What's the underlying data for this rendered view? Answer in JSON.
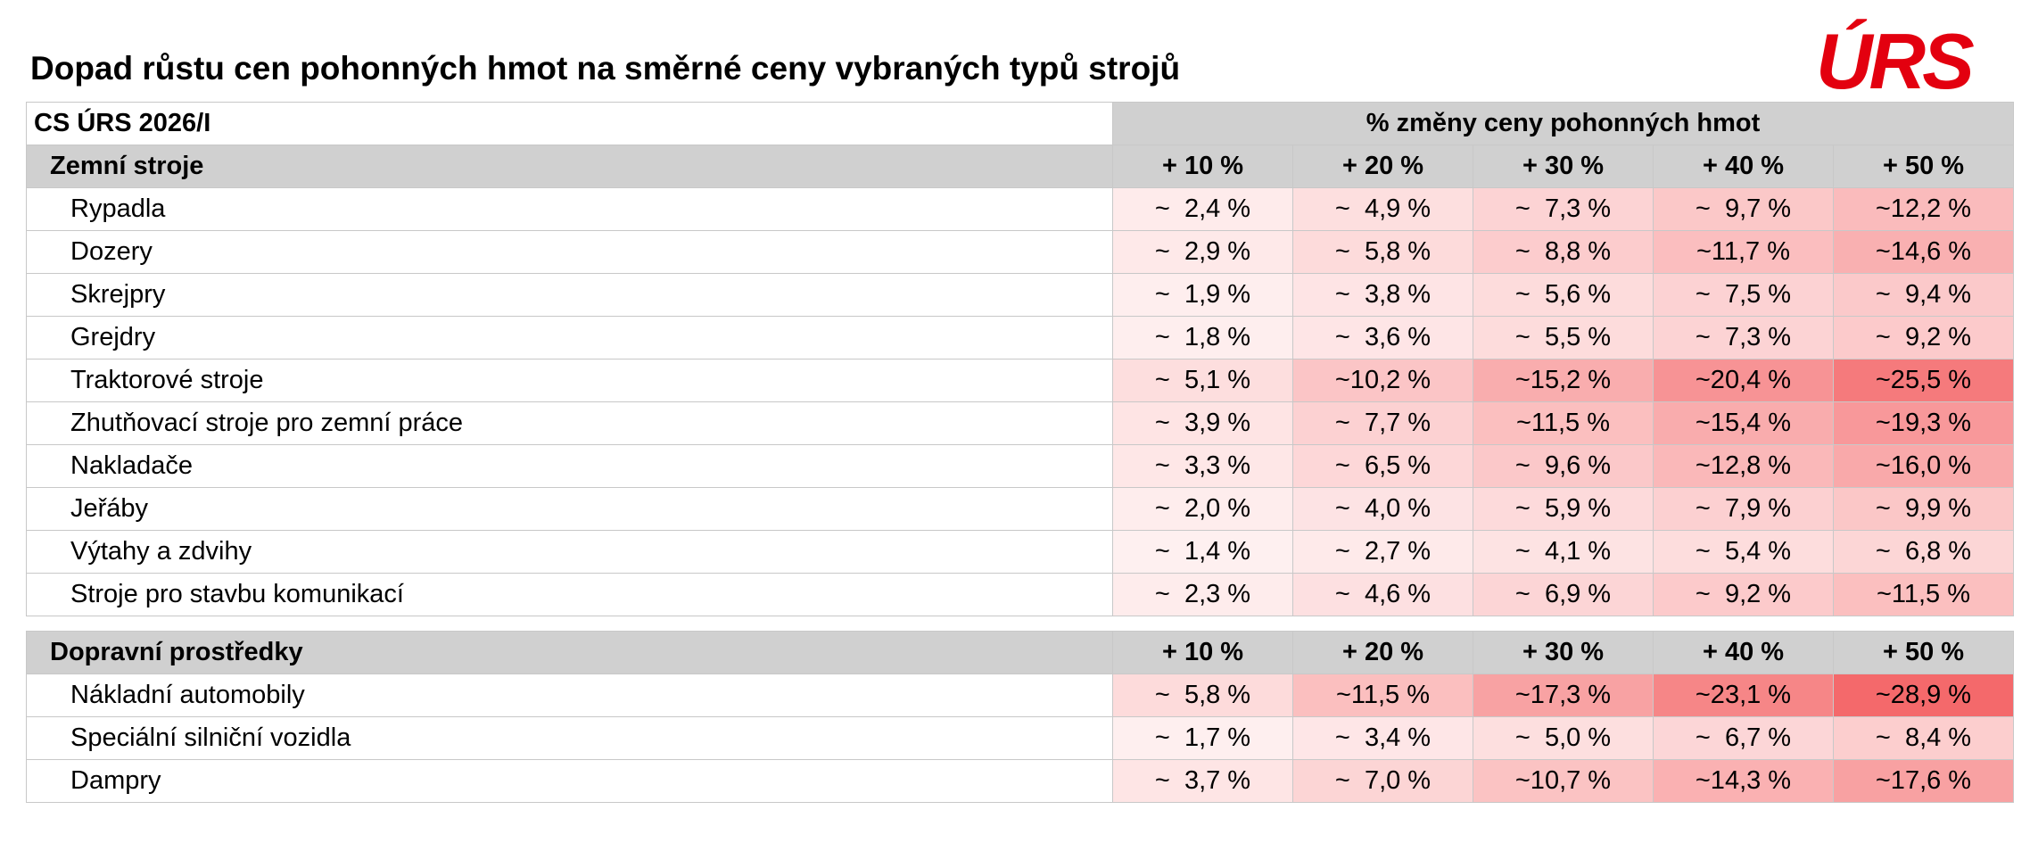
{
  "title": "Dopad růstu cen pohonných hmot na směrné ceny vybraných typů strojů",
  "logo": "ÚRS",
  "table": {
    "header_left": "CS ÚRS 2026/I",
    "header_group": "% změny ceny pohonných hmot",
    "sections": [
      {
        "name": "Zemní stroje",
        "columns": [
          "+ 10 %",
          "+ 20 %",
          "+ 30 %",
          "+ 40 %",
          "+ 50 %"
        ],
        "rows": [
          {
            "label": "Rypadla",
            "cells": [
              "~  2,4 %",
              "~  4,9 %",
              "~  7,3 %",
              "~  9,7 %",
              "~12,2 %"
            ]
          },
          {
            "label": "Dozery",
            "cells": [
              "~  2,9 %",
              "~  5,8 %",
              "~  8,8 %",
              "~11,7 %",
              "~14,6 %"
            ]
          },
          {
            "label": "Skrejpry",
            "cells": [
              "~  1,9 %",
              "~  3,8 %",
              "~  5,6 %",
              "~  7,5 %",
              "~  9,4 %"
            ]
          },
          {
            "label": "Grejdry",
            "cells": [
              "~  1,8 %",
              "~  3,6 %",
              "~  5,5 %",
              "~  7,3 %",
              "~  9,2 %"
            ]
          },
          {
            "label": "Traktorové stroje",
            "cells": [
              "~  5,1 %",
              "~10,2 %",
              "~15,2 %",
              "~20,4 %",
              "~25,5 %"
            ]
          },
          {
            "label": "Zhutňovací stroje pro zemní práce",
            "cells": [
              "~  3,9 %",
              "~  7,7 %",
              "~11,5 %",
              "~15,4 %",
              "~19,3 %"
            ]
          },
          {
            "label": "Nakladače",
            "cells": [
              "~  3,3 %",
              "~  6,5 %",
              "~  9,6 %",
              "~12,8 %",
              "~16,0 %"
            ]
          },
          {
            "label": "Jeřáby",
            "cells": [
              "~  2,0 %",
              "~  4,0 %",
              "~  5,9 %",
              "~  7,9 %",
              "~  9,9 %"
            ]
          },
          {
            "label": "Výtahy a zdvihy",
            "cells": [
              "~  1,4 %",
              "~  2,7 %",
              "~  4,1 %",
              "~  5,4 %",
              "~  6,8 %"
            ]
          },
          {
            "label": "Stroje pro stavbu komunikací",
            "cells": [
              "~  2,3 %",
              "~  4,6 %",
              "~  6,9 %",
              "~  9,2 %",
              "~11,5 %"
            ]
          }
        ]
      },
      {
        "name": "Dopravní prostředky",
        "columns": [
          "+ 10 %",
          "+ 20 %",
          "+ 30 %",
          "+ 40 %",
          "+ 50 %"
        ],
        "rows": [
          {
            "label": "Nákladní automobily",
            "cells": [
              "~  5,8 %",
              "~11,5 %",
              "~17,3 %",
              "~23,1 %",
              "~28,9 %"
            ]
          },
          {
            "label": "Speciální silniční vozidla",
            "cells": [
              "~  1,7 %",
              "~  3,4 %",
              "~  5,0 %",
              "~  6,7 %",
              "~  8,4 %"
            ]
          },
          {
            "label": "Dampry",
            "cells": [
              "~  3,7 %",
              "~  7,0 %",
              "~10,7 %",
              "~14,3 %",
              "~17,6 %"
            ]
          }
        ]
      }
    ]
  }
}
